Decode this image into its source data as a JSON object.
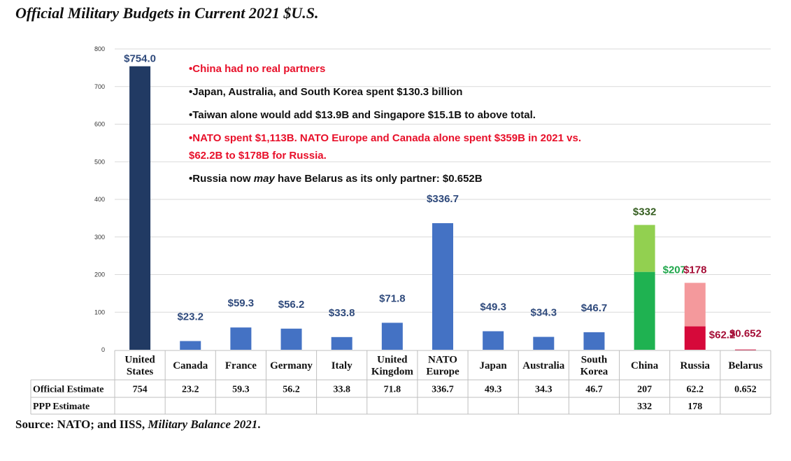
{
  "title": "Official Military Budgets in Current 2021 $U.S.",
  "source": {
    "prefix": "Source: NATO; and IISS, ",
    "italic": "Military Balance 2021",
    "suffix": "."
  },
  "notes": [
    {
      "text": "•China had no real partners",
      "color": "red"
    },
    {
      "text": "•Japan, Australia, and South Korea spent $130.3 billion",
      "color": "black"
    },
    {
      "text": "•Taiwan alone would add $13.9B and Singapore $15.1B to above total.",
      "color": "black"
    },
    {
      "text": "•NATO spent $1,113B. NATO Europe and Canada alone spent $359B in 2021 vs.",
      "color": "red"
    },
    {
      "text": "$62.2B to $178B for Russia.",
      "color": "red"
    },
    {
      "pre": "•Russia now ",
      "em": "may",
      "post": " have Belarus as its only partner: $0.652B",
      "color": "black"
    }
  ],
  "chart_data": {
    "type": "bar",
    "title": "Official Military Budgets in Current 2021 $U.S.",
    "ylim": [
      0,
      800
    ],
    "yticks": [
      0,
      100,
      200,
      300,
      400,
      500,
      600,
      700,
      800
    ],
    "grid": true,
    "categories": [
      "United States",
      "Canada",
      "France",
      "Germany",
      "Italy",
      "United Kingdom",
      "NATO Europe",
      "Japan",
      "Australia",
      "South Korea",
      "China",
      "Russia",
      "Belarus"
    ],
    "category_lines": [
      [
        "United",
        "States"
      ],
      [
        "Canada"
      ],
      [
        "France"
      ],
      [
        "Germany"
      ],
      [
        "Italy"
      ],
      [
        "United",
        "Kingdom"
      ],
      [
        "NATO",
        "Europe"
      ],
      [
        "Japan"
      ],
      [
        "Australia"
      ],
      [
        "South",
        "Korea"
      ],
      [
        "China"
      ],
      [
        "Russia"
      ],
      [
        "Belarus"
      ]
    ],
    "official": [
      754,
      23.2,
      59.3,
      56.2,
      33.8,
      71.8,
      336.7,
      49.3,
      34.3,
      46.7,
      207,
      62.2,
      0.652
    ],
    "ppp": [
      null,
      null,
      null,
      null,
      null,
      null,
      null,
      null,
      null,
      null,
      332,
      178,
      null
    ],
    "bar_labels": [
      "$754.0",
      "$23.2",
      "$59.3",
      "$56.2",
      "$33.8",
      "$71.8",
      "$336.7",
      "$49.3",
      "$34.3",
      "$46.7",
      "$207",
      "$62.2",
      "$0.652"
    ],
    "ppp_labels": [
      null,
      null,
      null,
      null,
      null,
      null,
      null,
      null,
      null,
      null,
      "$332",
      "$178",
      null
    ],
    "table": {
      "rows": [
        {
          "label": "Official Estimate",
          "values": [
            "754",
            "23.2",
            "59.3",
            "56.2",
            "33.8",
            "71.8",
            "336.7",
            "49.3",
            "34.3",
            "46.7",
            "207",
            "62.2",
            "0.652"
          ]
        },
        {
          "label": "PPP Estimate",
          "values": [
            "",
            "",
            "",
            "",
            "",
            "",
            "",
            "",
            "",
            "",
            "332",
            "178",
            ""
          ]
        }
      ]
    },
    "colors": {
      "united_states": "#213a63",
      "default": "#4472c4",
      "china_official": "#1fb251",
      "china_ppp": "#92d050",
      "russia_official": "#d6093a",
      "russia_ppp": "#f4999c",
      "belarus": "#d6093a",
      "label_default": "#2f4a7c",
      "label_china_official": "#1fa64b",
      "label_china_ppp": "#335c1e",
      "label_russia": "#a50d36"
    }
  }
}
